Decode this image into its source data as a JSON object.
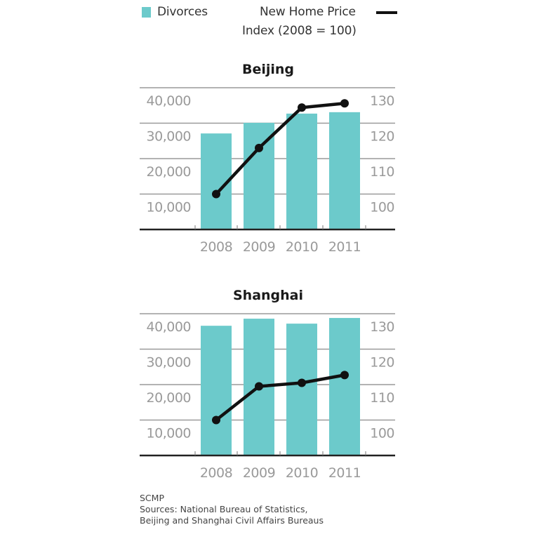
{
  "legend": {
    "divorces_label": "Divorces",
    "index_label_line1": "New Home Price",
    "index_label_line2": "Index (2008 = 100)"
  },
  "colors": {
    "bar": "#6ccacb",
    "line": "#111111",
    "gridline": "#9a9a9a",
    "axis": "#222222",
    "axis_label": "#9a9a9a",
    "title": "#1a1a1a"
  },
  "footer": {
    "credit": "SCMP",
    "sources_line1": "Sources: National Bureau of Statistics,",
    "sources_line2": "Beijing and Shanghai Civil Affairs Bureaus"
  },
  "chart_data": [
    {
      "type": "bar+line",
      "title": "Beijing",
      "categories": [
        "2008",
        "2009",
        "2010",
        "2011"
      ],
      "series": [
        {
          "name": "Divorces",
          "type": "bar",
          "axis": "left",
          "values": [
            27100,
            30100,
            32700,
            33100
          ]
        },
        {
          "name": "New Home Price Index (2008 = 100)",
          "type": "line",
          "axis": "right",
          "values": [
            100,
            113,
            124.4,
            125.6
          ]
        }
      ],
      "left_axis": {
        "ticks": [
          "10,000",
          "20,000",
          "30,000",
          "40,000"
        ],
        "tick_values": [
          10000,
          20000,
          30000,
          40000
        ],
        "range": [
          0,
          40000
        ]
      },
      "right_axis": {
        "ticks": [
          "100",
          "110",
          "120",
          "130"
        ],
        "tick_values": [
          100,
          110,
          120,
          130
        ],
        "range": [
          80,
          130
        ]
      },
      "xlabel": "",
      "ylabel": "",
      "grid": true
    },
    {
      "type": "bar+line",
      "title": "Shanghai",
      "categories": [
        "2008",
        "2009",
        "2010",
        "2011"
      ],
      "series": [
        {
          "name": "Divorces",
          "type": "bar",
          "axis": "left",
          "values": [
            36600,
            38600,
            37200,
            38800
          ]
        },
        {
          "name": "New Home Price Index (2008 = 100)",
          "type": "line",
          "axis": "right",
          "values": [
            100,
            109.5,
            110.5,
            112.7
          ]
        }
      ],
      "left_axis": {
        "ticks": [
          "10,000",
          "20,000",
          "30,000",
          "40,000"
        ],
        "tick_values": [
          10000,
          20000,
          30000,
          40000
        ],
        "range": [
          0,
          40000
        ]
      },
      "right_axis": {
        "ticks": [
          "100",
          "110",
          "120",
          "130"
        ],
        "tick_values": [
          100,
          110,
          120,
          130
        ],
        "range": [
          80,
          130
        ]
      },
      "xlabel": "",
      "ylabel": "",
      "grid": true
    }
  ]
}
